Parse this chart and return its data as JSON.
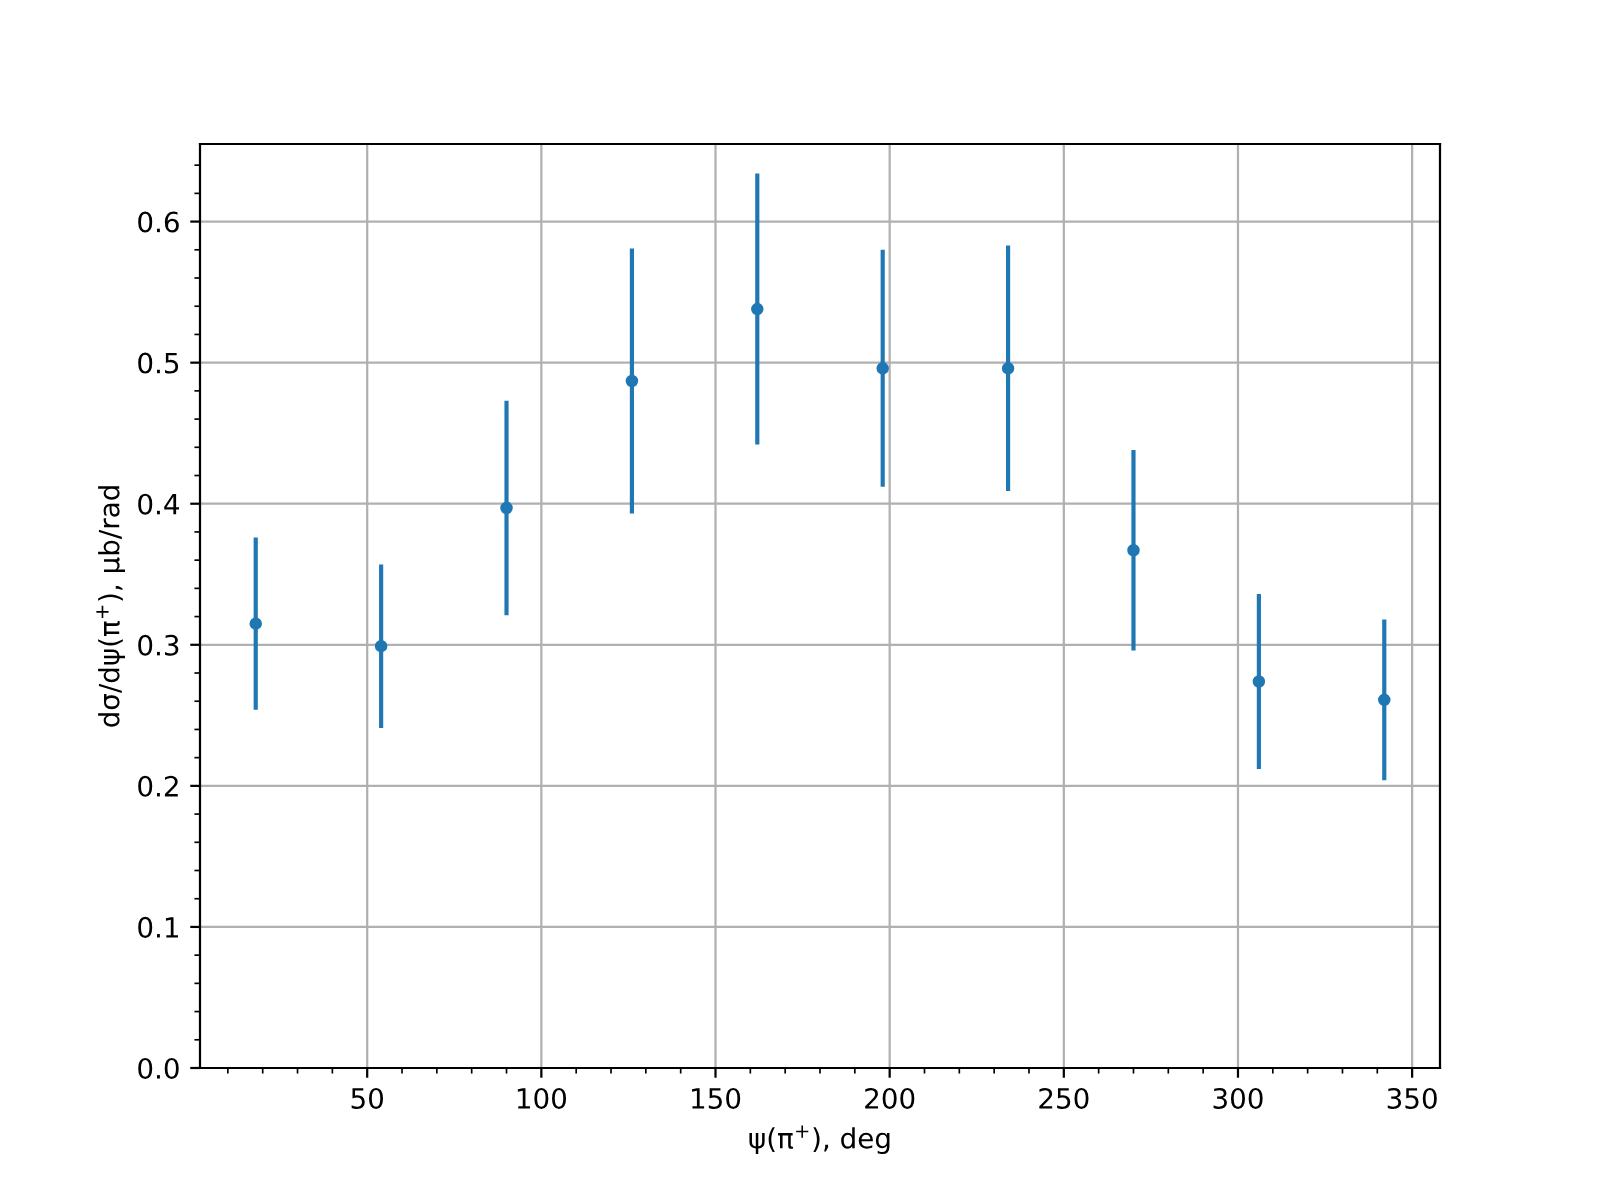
{
  "chart_data": {
    "type": "scatter",
    "xlabel": "ψ(π$^{+}$), deg",
    "ylabel": "dσ/dψ(π$^{+}$), μb/rad",
    "x": [
      18,
      54,
      90,
      126,
      162,
      198,
      234,
      270,
      306,
      342
    ],
    "series": [
      {
        "color": "#1f77b4",
        "values": [
          0.315,
          0.299,
          0.397,
          0.487,
          0.538,
          0.496,
          0.496,
          0.367,
          0.274,
          0.261
        ],
        "errors": [
          0.061,
          0.058,
          0.076,
          0.094,
          0.096,
          0.084,
          0.087,
          0.071,
          0.062,
          0.057
        ]
      }
    ],
    "xlim": [
      2,
      358
    ],
    "ylim": [
      0,
      0.655
    ],
    "xticks": [
      50,
      100,
      150,
      200,
      250,
      300,
      350
    ],
    "yticks": [
      {
        "value": 0,
        "label": "0.0"
      },
      0.1,
      0.2,
      0.3,
      0.4,
      0.5,
      0.6
    ],
    "grid": true,
    "marker": "circle"
  }
}
